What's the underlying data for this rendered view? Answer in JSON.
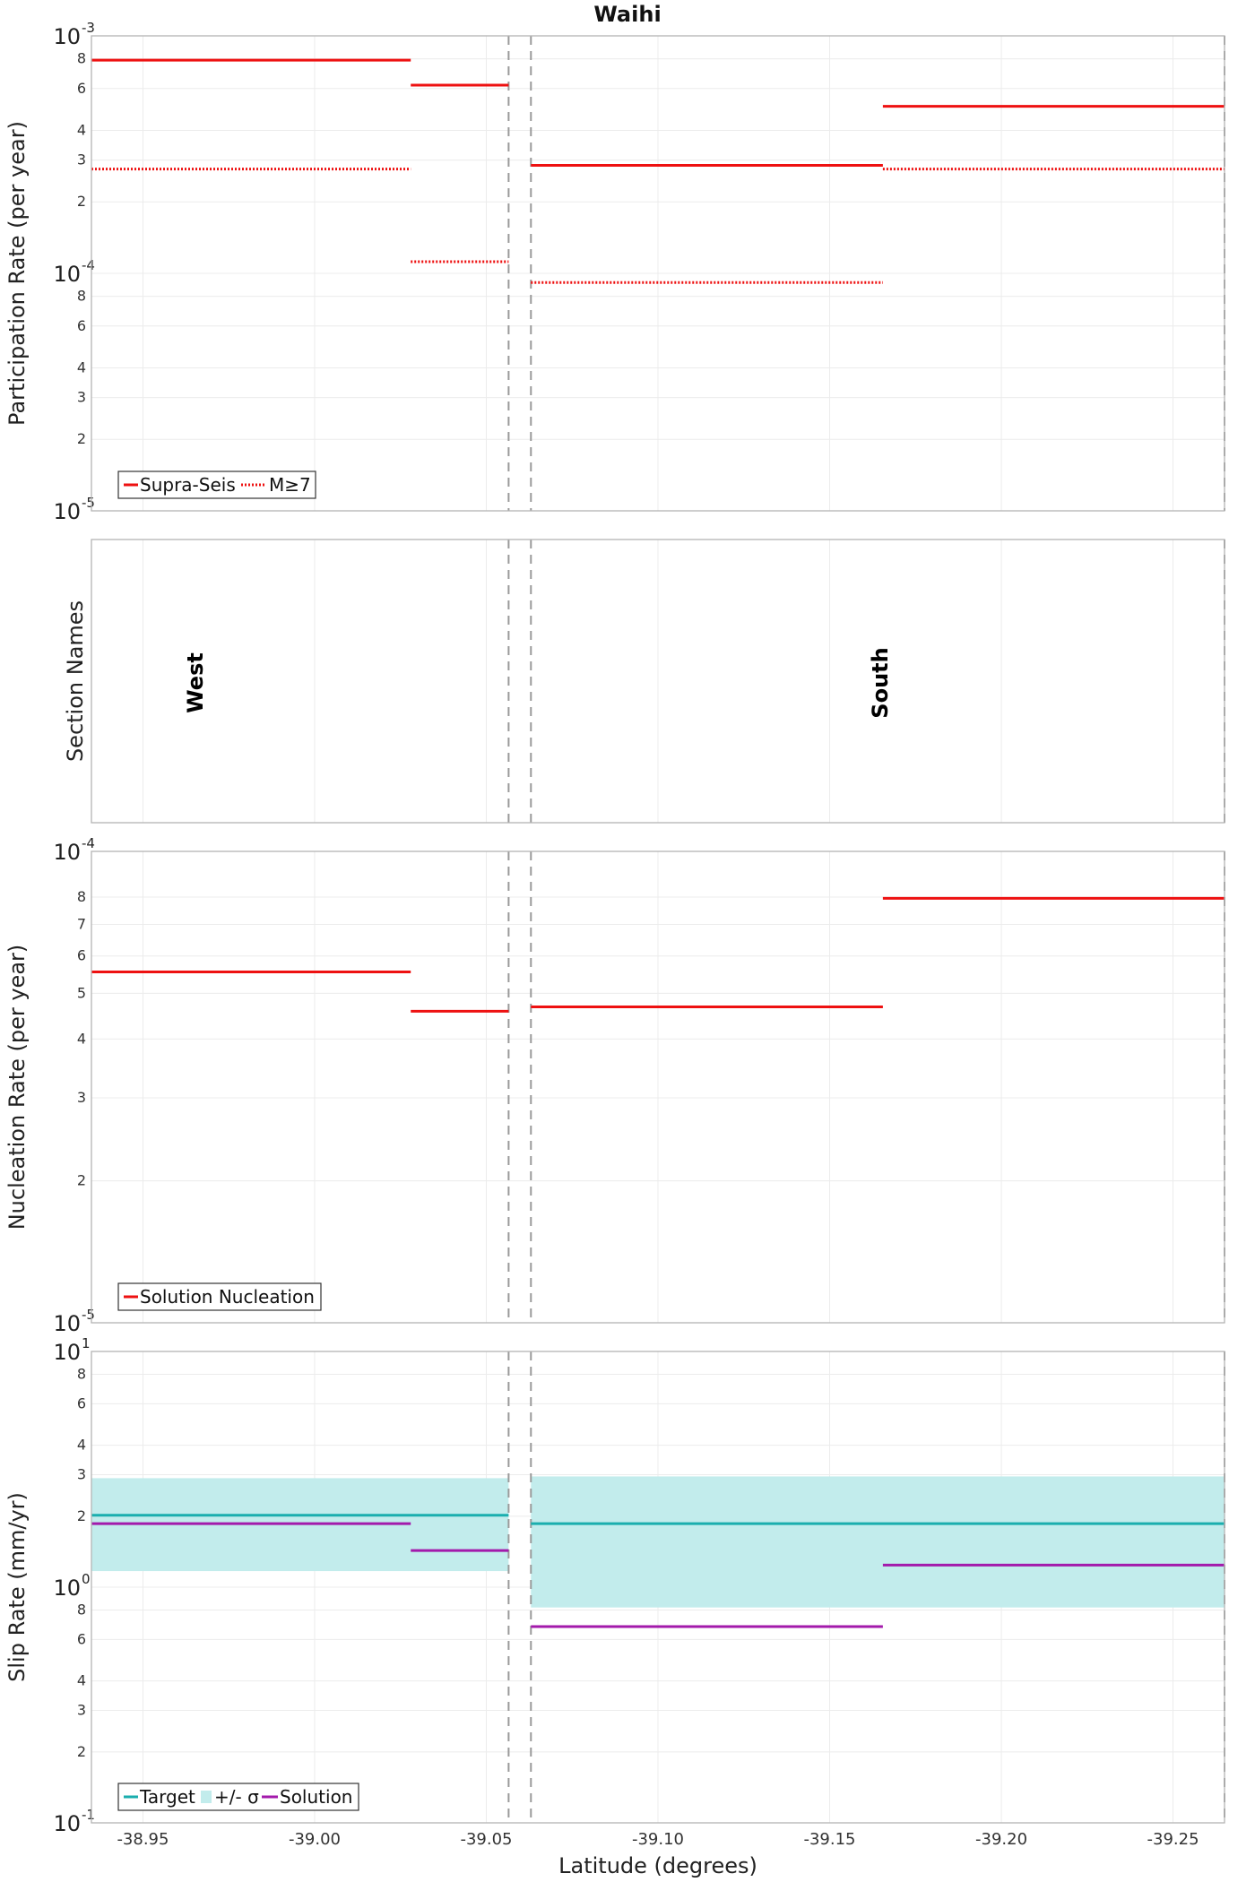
{
  "title": "Waihi",
  "xlabel": "Latitude (degrees)",
  "x_ticks": [
    "-38.95",
    "-39.00",
    "-39.05",
    "-39.10",
    "-39.15",
    "-39.20",
    "-39.25"
  ],
  "colors": {
    "red": "#ee1111",
    "teal": "#1aaeae",
    "band": "#c2ecec",
    "purple": "#a31aab"
  },
  "chart_data": [
    {
      "type": "line",
      "name": "participation",
      "ylabel": "Participation Rate (per year)",
      "yscale": "log",
      "ylim": [
        1e-05,
        0.001
      ],
      "xlim": [
        -38.935,
        -39.265
      ],
      "series": [
        {
          "name": "Supra-Seis",
          "style": "solid",
          "color": "#ee1111",
          "segments": [
            [
              -38.935,
              -39.028,
              0.00079
            ],
            [
              -39.028,
              -39.0565,
              0.00062
            ],
            [
              -39.063,
              -39.1655,
              0.000285
            ],
            [
              -39.1655,
              -39.265,
              0.000505
            ]
          ]
        },
        {
          "name": "M≥7",
          "style": "dotted",
          "color": "#ee1111",
          "segments": [
            [
              -38.935,
              -39.028,
              0.000275
            ],
            [
              -39.028,
              -39.0565,
              0.000112
            ],
            [
              -39.063,
              -39.1655,
              9.15e-05
            ],
            [
              -39.1655,
              -39.265,
              0.000275
            ]
          ]
        }
      ],
      "legend_position": "bottom-left"
    },
    {
      "type": "table",
      "name": "section-names",
      "ylabel": "Section Names",
      "sections": [
        {
          "label": "West",
          "x": -38.965
        },
        {
          "label": "South",
          "x": -39.1645
        }
      ]
    },
    {
      "type": "line",
      "name": "nucleation",
      "ylabel": "Nucleation Rate (per year)",
      "yscale": "log",
      "ylim": [
        1e-05,
        0.0001
      ],
      "xlim": [
        -38.935,
        -39.265
      ],
      "series": [
        {
          "name": "Solution Nucleation",
          "style": "solid",
          "color": "#ee1111",
          "segments": [
            [
              -38.935,
              -39.028,
              5.55e-05
            ],
            [
              -39.028,
              -39.0565,
              4.58e-05
            ],
            [
              -39.063,
              -39.1655,
              4.68e-05
            ],
            [
              -39.1655,
              -39.265,
              7.95e-05
            ]
          ]
        }
      ],
      "legend_position": "bottom-left"
    },
    {
      "type": "line",
      "name": "slip-rate",
      "ylabel": "Slip Rate (mm/yr)",
      "yscale": "log",
      "ylim": [
        0.1,
        10
      ],
      "xlim": [
        -38.935,
        -39.265
      ],
      "series": [
        {
          "name": "Target",
          "style": "solid",
          "color": "#1aaeae",
          "segments": [
            [
              -38.935,
              -39.0565,
              2.02
            ],
            [
              -39.063,
              -39.265,
              1.86
            ]
          ]
        },
        {
          "name": "+/- σ",
          "style": "band",
          "color": "#c2ecec",
          "bands": [
            [
              -38.935,
              -39.0565,
              1.17,
              2.9
            ],
            [
              -39.063,
              -39.265,
              0.82,
              2.95
            ]
          ]
        },
        {
          "name": "Solution",
          "style": "solid",
          "color": "#a31aab",
          "segments": [
            [
              -38.935,
              -39.028,
              1.86
            ],
            [
              -39.028,
              -39.0565,
              1.43
            ],
            [
              -39.063,
              -39.1655,
              0.68
            ],
            [
              -39.1655,
              -39.265,
              1.24
            ]
          ]
        }
      ],
      "legend_position": "bottom-left"
    }
  ],
  "dividers": [
    -39.0565,
    -39.063,
    -39.265
  ]
}
